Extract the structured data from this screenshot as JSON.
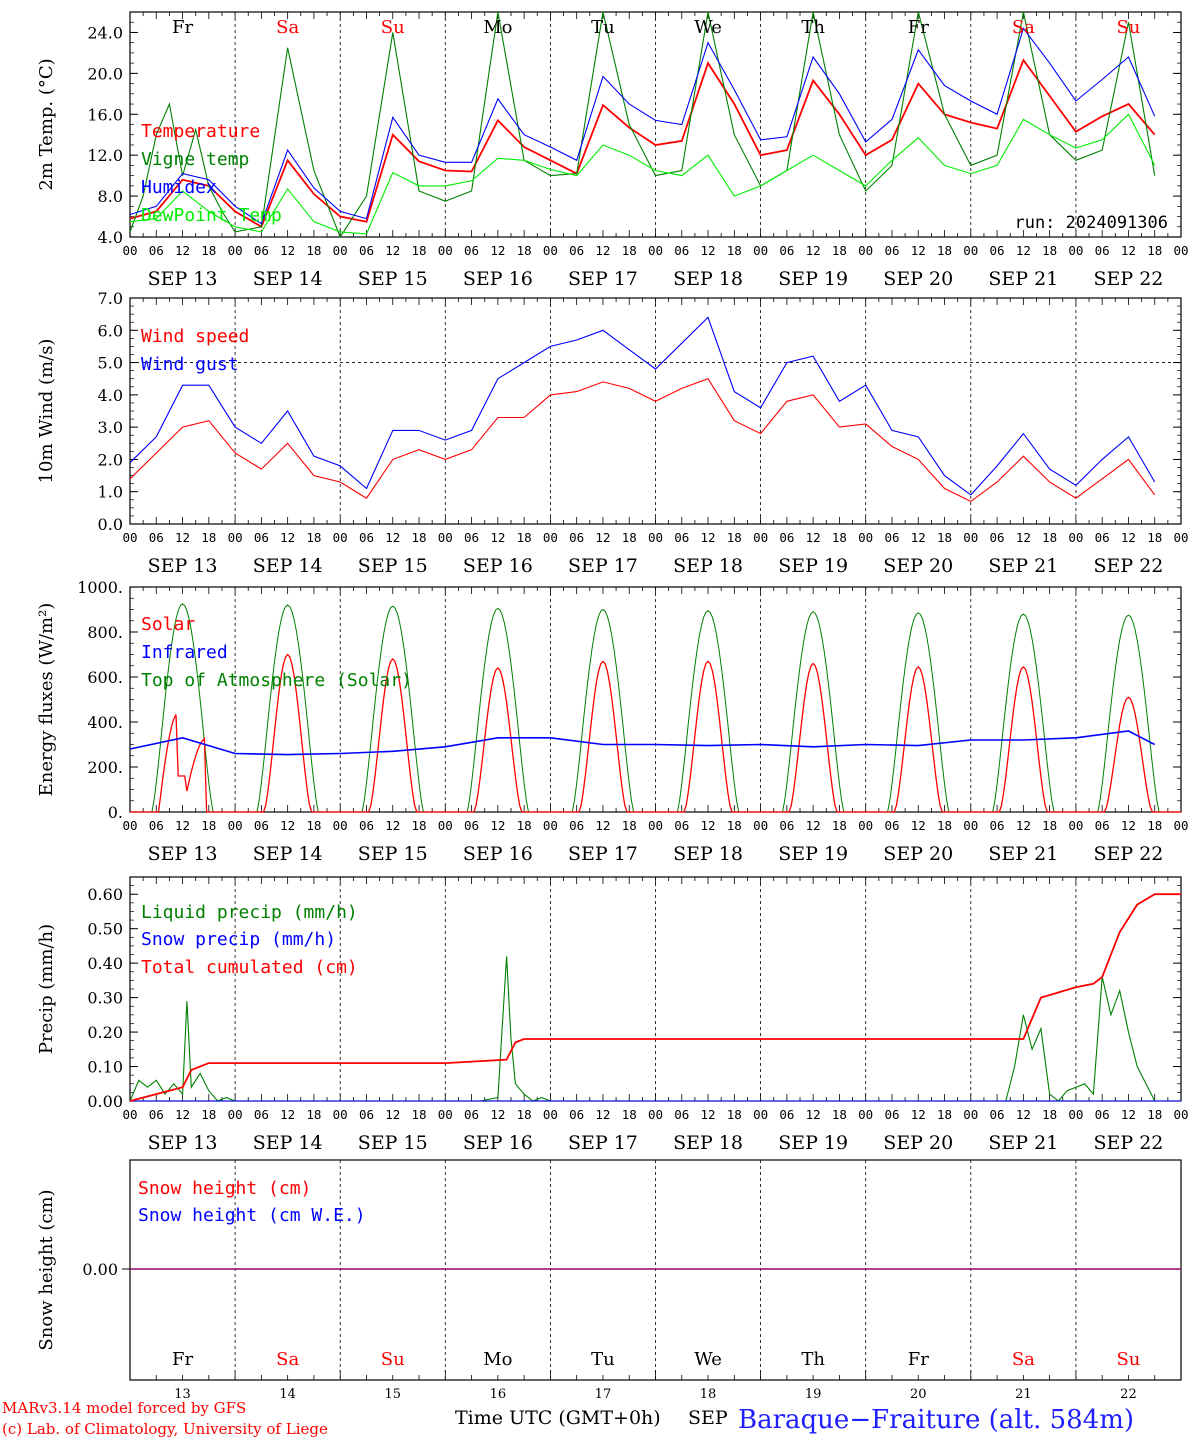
{
  "station": "Baraque−Fraiture (alt. 584m)",
  "credits": [
    "MARv3.14 model forced by GFS",
    "(c) Lab. of Climatology, University of Liege"
  ],
  "xaxis_title": "Time UTC (GMT+0h)",
  "month_label": "SEP",
  "hour_ticks": [
    "00",
    "06",
    "12",
    "18"
  ],
  "dates": [
    "SEP 13",
    "SEP 14",
    "SEP 15",
    "SEP 16",
    "SEP 17",
    "SEP 18",
    "SEP 19",
    "SEP 20",
    "SEP 21",
    "SEP 22"
  ],
  "day_numbers": [
    "13",
    "14",
    "15",
    "16",
    "17",
    "18",
    "19",
    "20",
    "21",
    "22"
  ],
  "weekdays": [
    "Fr",
    "Sa",
    "Su",
    "Mo",
    "Tu",
    "We",
    "Th",
    "Fr",
    "Sa",
    "Su"
  ],
  "colors": {
    "temp": "#ff0000",
    "vigne": "#008000",
    "humidex": "#0000ff",
    "dewpoint": "#00ee00",
    "weekend": "#ff0000",
    "weekday": "#000000",
    "title": "#1e1eff"
  },
  "chart_data": [
    {
      "type": "line",
      "ylabel": "2m Temp. (°C)",
      "ylim": [
        4.0,
        26.0
      ],
      "yticks": [
        "4.0",
        "8.0",
        "12.0",
        "16.0",
        "20.0",
        "24.0"
      ],
      "annotation": "run: 2024091306",
      "x_unit": "hours since Sep 13 00 UTC",
      "series": [
        {
          "name": "Temperature",
          "color": "#ff0000",
          "x": [
            0,
            6,
            12,
            18,
            24,
            30,
            36,
            42,
            48,
            54,
            60,
            66,
            72,
            78,
            84,
            90,
            96,
            102,
            108,
            114,
            120,
            126,
            132,
            138,
            144,
            150,
            156,
            162,
            168,
            174,
            180,
            186,
            192,
            198,
            204,
            210,
            216,
            222,
            228,
            234
          ],
          "y": [
            5.8,
            6.5,
            9.6,
            9.0,
            6.5,
            5.0,
            11.5,
            8.2,
            6.0,
            5.5,
            14.0,
            11.4,
            10.5,
            10.4,
            15.4,
            12.8,
            11.5,
            10.2,
            16.9,
            14.7,
            13.0,
            13.4,
            21.0,
            17.0,
            12.0,
            12.5,
            19.3,
            16.0,
            12.0,
            13.5,
            19.0,
            16.0,
            15.2,
            14.6,
            21.3,
            17.8,
            14.3,
            15.8,
            17.0,
            14.0
          ]
        },
        {
          "name": "Vigne temp",
          "color": "#008000",
          "x": [
            0,
            3,
            6,
            9,
            12,
            15,
            18,
            21,
            24,
            30,
            36,
            42,
            48,
            54,
            60,
            66,
            72,
            78,
            84,
            90,
            96,
            102,
            108,
            114,
            120,
            126,
            132,
            138,
            144,
            150,
            156,
            162,
            168,
            174,
            180,
            186,
            192,
            198,
            204,
            210,
            216,
            222,
            228,
            234
          ],
          "y": [
            4.5,
            8.0,
            14.0,
            17.0,
            10.0,
            14.5,
            9.0,
            6.5,
            4.5,
            5.0,
            22.5,
            10.5,
            4.0,
            8.0,
            24.0,
            8.5,
            7.5,
            8.5,
            29.0,
            11.5,
            10.0,
            10.2,
            27.0,
            15.0,
            10.0,
            10.5,
            28.0,
            14.0,
            9.0,
            10.5,
            28.5,
            14.0,
            8.5,
            11.0,
            28.5,
            16.0,
            11.0,
            12.0,
            26.5,
            14.0,
            11.5,
            12.5,
            25.0,
            10.0
          ]
        },
        {
          "name": "Humidex",
          "color": "#0000ff",
          "x": [
            0,
            6,
            12,
            18,
            24,
            30,
            36,
            42,
            48,
            54,
            60,
            66,
            72,
            78,
            84,
            90,
            96,
            102,
            108,
            114,
            120,
            126,
            132,
            138,
            144,
            150,
            156,
            162,
            168,
            174,
            180,
            186,
            192,
            198,
            204,
            210,
            216,
            222,
            228,
            234
          ],
          "y": [
            6.2,
            7.0,
            10.2,
            9.6,
            7.0,
            5.3,
            12.5,
            8.8,
            6.5,
            5.8,
            15.7,
            12.0,
            11.3,
            11.3,
            17.5,
            14.0,
            12.8,
            11.5,
            19.7,
            17.0,
            15.4,
            15.0,
            23.0,
            18.4,
            13.5,
            13.8,
            21.6,
            18.0,
            13.3,
            15.5,
            22.3,
            18.8,
            17.3,
            16.0,
            24.4,
            21.0,
            17.3,
            19.4,
            21.6,
            15.8
          ]
        },
        {
          "name": "DewPoint Temp",
          "color": "#00ee00",
          "x": [
            0,
            6,
            12,
            18,
            24,
            30,
            36,
            42,
            48,
            54,
            60,
            66,
            72,
            78,
            84,
            90,
            96,
            102,
            108,
            114,
            120,
            126,
            132,
            138,
            144,
            150,
            156,
            162,
            168,
            174,
            180,
            186,
            192,
            198,
            204,
            210,
            216,
            222,
            228,
            234
          ],
          "y": [
            5.5,
            5.8,
            8.5,
            6.5,
            5.0,
            4.5,
            8.7,
            5.5,
            4.5,
            4.3,
            10.3,
            9.0,
            9.0,
            9.5,
            11.7,
            11.5,
            10.6,
            10.0,
            13.0,
            12.0,
            10.5,
            10.0,
            12.0,
            8.0,
            9.0,
            10.5,
            12.0,
            10.5,
            9.0,
            11.5,
            13.7,
            11.0,
            10.2,
            11.0,
            15.5,
            14.0,
            12.7,
            13.5,
            16.0,
            11.0
          ]
        }
      ]
    },
    {
      "type": "line",
      "ylabel": "10m Wind (m/s)",
      "ylim": [
        0.0,
        7.0
      ],
      "yticks": [
        "0.0",
        "1.0",
        "2.0",
        "3.0",
        "4.0",
        "5.0",
        "6.0",
        "7.0"
      ],
      "reference_line": 5.0,
      "x_unit": "hours since Sep 13 00 UTC",
      "series": [
        {
          "name": "Wind speed",
          "color": "#ff0000",
          "x": [
            0,
            6,
            12,
            18,
            24,
            30,
            36,
            42,
            48,
            54,
            60,
            66,
            72,
            78,
            84,
            90,
            96,
            102,
            108,
            114,
            120,
            126,
            132,
            138,
            144,
            150,
            156,
            162,
            168,
            174,
            180,
            186,
            192,
            198,
            204,
            210,
            216,
            222,
            228,
            234
          ],
          "y": [
            1.4,
            2.2,
            3.0,
            3.2,
            2.2,
            1.7,
            2.5,
            1.5,
            1.3,
            0.8,
            2.0,
            2.3,
            2.0,
            2.3,
            3.3,
            3.3,
            4.0,
            4.1,
            4.4,
            4.2,
            3.8,
            4.2,
            4.5,
            3.2,
            2.8,
            3.8,
            4.0,
            3.0,
            3.1,
            2.4,
            2.0,
            1.1,
            0.7,
            1.3,
            2.1,
            1.3,
            0.8,
            1.4,
            2.0,
            0.9
          ]
        },
        {
          "name": "Wind gust",
          "color": "#0000ff",
          "x": [
            0,
            6,
            12,
            18,
            24,
            30,
            36,
            42,
            48,
            54,
            60,
            66,
            72,
            78,
            84,
            90,
            96,
            102,
            108,
            114,
            120,
            126,
            132,
            138,
            144,
            150,
            156,
            162,
            168,
            174,
            180,
            186,
            192,
            198,
            204,
            210,
            216,
            222,
            228,
            234
          ],
          "y": [
            1.9,
            2.7,
            4.3,
            4.3,
            3.0,
            2.5,
            3.5,
            2.1,
            1.8,
            1.1,
            2.9,
            2.9,
            2.6,
            2.9,
            4.5,
            5.0,
            5.5,
            5.7,
            6.0,
            5.4,
            4.8,
            5.6,
            6.4,
            4.1,
            3.6,
            5.0,
            5.2,
            3.8,
            4.3,
            2.9,
            2.7,
            1.5,
            0.9,
            1.8,
            2.8,
            1.7,
            1.2,
            2.0,
            2.7,
            1.3
          ]
        }
      ]
    },
    {
      "type": "line",
      "ylabel": "Energy fluxes (W/m²)",
      "ylim": [
        0,
        1000
      ],
      "yticks": [
        "0.",
        "200.",
        "400.",
        "600.",
        "800.",
        "1000."
      ],
      "x_unit": "hours since Sep 13 00 UTC",
      "series": [
        {
          "name": "Solar",
          "color": "#ff0000",
          "peaks": [
            [
              10,
              440
            ],
            [
              12,
              200
            ],
            [
              14,
              330
            ],
            [
              37,
              700
            ],
            [
              61,
              680
            ],
            [
              84,
              640
            ],
            [
              83,
              460
            ],
            [
              109,
              670
            ],
            [
              133,
              670
            ],
            [
              157,
              660
            ],
            [
              181,
              645
            ],
            [
              205,
              645
            ],
            [
              229,
              510
            ],
            [
              227,
              440
            ]
          ],
          "noon_peaks": [
            330,
            700,
            680,
            640,
            670,
            670,
            660,
            645,
            645,
            510
          ]
        },
        {
          "name": "Infrared",
          "color": "#0000ff",
          "x": [
            0,
            12,
            24,
            36,
            48,
            60,
            72,
            84,
            96,
            108,
            120,
            132,
            144,
            156,
            168,
            180,
            192,
            204,
            216,
            228,
            234
          ],
          "y": [
            280,
            330,
            260,
            255,
            260,
            270,
            290,
            330,
            330,
            300,
            300,
            295,
            300,
            290,
            300,
            295,
            320,
            320,
            330,
            360,
            300
          ]
        },
        {
          "name": "Top of Atmosphere (Solar)",
          "color": "#008000",
          "noon_peaks": [
            925,
            920,
            915,
            905,
            900,
            895,
            890,
            885,
            880,
            875
          ]
        }
      ]
    },
    {
      "type": "line",
      "ylabel": "Precip (mm/h)",
      "ylim": [
        0.0,
        0.65
      ],
      "yticks": [
        "0.00",
        "0.10",
        "0.20",
        "0.30",
        "0.40",
        "0.50",
        "0.60"
      ],
      "x_unit": "hours since Sep 13 00 UTC",
      "series": [
        {
          "name": "Liquid precip (mm/h)",
          "color": "#008000",
          "x": [
            0,
            2,
            4,
            6,
            8,
            10,
            12,
            13,
            14,
            16,
            18,
            20,
            22,
            24,
            80,
            84,
            86,
            87,
            88,
            90,
            92,
            94,
            96,
            200,
            202,
            204,
            206,
            208,
            210,
            212,
            214,
            216,
            218,
            220,
            222,
            224,
            226,
            228,
            230,
            232,
            234,
            240
          ],
          "y": [
            0,
            0.06,
            0.04,
            0.06,
            0.02,
            0.05,
            0.02,
            0.29,
            0.04,
            0.08,
            0.03,
            0,
            0.01,
            0,
            0,
            0.01,
            0.42,
            0.18,
            0.05,
            0.02,
            0,
            0.01,
            0,
            0,
            0.1,
            0.25,
            0.15,
            0.21,
            0.02,
            0,
            0.03,
            0.04,
            0.05,
            0.02,
            0.36,
            0.25,
            0.32,
            0.2,
            0.1,
            0.05,
            0,
            0
          ]
        },
        {
          "name": "Snow precip (mm/h)",
          "color": "#0000ff",
          "x": [
            0,
            240
          ],
          "y": [
            0,
            0
          ]
        },
        {
          "name": "Total cumulated (cm)",
          "color": "#ff0000",
          "x": [
            0,
            6,
            12,
            14,
            18,
            22,
            24,
            48,
            72,
            86,
            88,
            90,
            96,
            120,
            144,
            168,
            192,
            204,
            208,
            216,
            220,
            222,
            226,
            230,
            234,
            240
          ],
          "y": [
            0,
            0.02,
            0.04,
            0.09,
            0.11,
            0.11,
            0.11,
            0.11,
            0.11,
            0.12,
            0.17,
            0.18,
            0.18,
            0.18,
            0.18,
            0.18,
            0.18,
            0.18,
            0.3,
            0.33,
            0.34,
            0.36,
            0.49,
            0.57,
            0.6,
            0.6
          ]
        }
      ]
    },
    {
      "type": "line",
      "ylabel": "Snow height (cm)",
      "yticks": [
        "0.00"
      ],
      "x_unit": "hours since Sep 13 00 UTC",
      "series": [
        {
          "name": "Snow height (cm)",
          "color": "#ff0000",
          "x": [
            0,
            240
          ],
          "y": [
            0,
            0
          ]
        },
        {
          "name": "Snow height (cm W.E.)",
          "color": "#0000ff",
          "x": [
            0,
            240
          ],
          "y": [
            0,
            0
          ]
        }
      ]
    }
  ]
}
